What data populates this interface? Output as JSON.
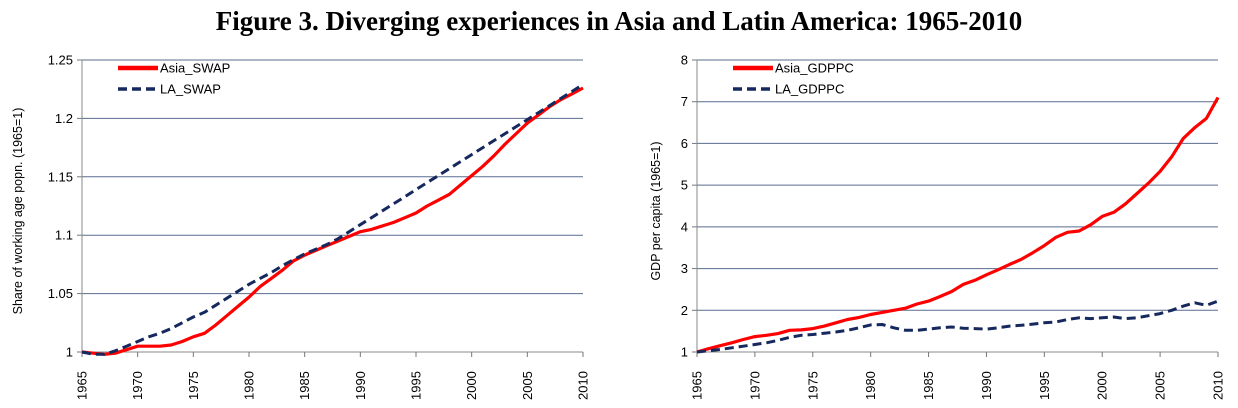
{
  "figure_title": "Figure 3. Diverging experiences in Asia and Latin America: 1965-2010",
  "chart_data": [
    {
      "type": "line",
      "title": "",
      "xlabel": "",
      "ylabel": "Share of working age popn. (1965=1)",
      "xlim": [
        1965,
        2010
      ],
      "ylim": [
        1,
        1.25
      ],
      "yticks": [
        "1",
        "1.05",
        "1.1",
        "1.15",
        "1.2",
        "1.25"
      ],
      "xticks": [
        "1965",
        "1970",
        "1975",
        "1980",
        "1985",
        "1990",
        "1995",
        "2000",
        "2005",
        "2010"
      ],
      "grid": "horizontal",
      "legend": "top-left",
      "series": [
        {
          "name": "Asia_SWAP",
          "color": "#ff0000",
          "style": "solid",
          "x": [
            1965,
            1966,
            1967,
            1968,
            1969,
            1970,
            1971,
            1972,
            1973,
            1974,
            1975,
            1976,
            1977,
            1978,
            1979,
            1980,
            1981,
            1982,
            1983,
            1984,
            1985,
            1986,
            1987,
            1988,
            1989,
            1990,
            1991,
            1992,
            1993,
            1994,
            1995,
            1996,
            1997,
            1998,
            1999,
            2000,
            2001,
            2002,
            2003,
            2004,
            2005,
            2006,
            2007,
            2008,
            2009,
            2010
          ],
          "values": [
            1.0,
            0.999,
            0.998,
            0.999,
            1.002,
            1.005,
            1.005,
            1.005,
            1.006,
            1.009,
            1.013,
            1.016,
            1.023,
            1.031,
            1.039,
            1.047,
            1.056,
            1.063,
            1.07,
            1.078,
            1.083,
            1.087,
            1.091,
            1.095,
            1.099,
            1.103,
            1.105,
            1.108,
            1.111,
            1.115,
            1.119,
            1.125,
            1.13,
            1.135,
            1.143,
            1.151,
            1.159,
            1.168,
            1.178,
            1.187,
            1.196,
            1.203,
            1.21,
            1.216,
            1.221,
            1.226
          ]
        },
        {
          "name": "LA_SWAP",
          "color": "#16295e",
          "style": "dashed",
          "x": [
            1965,
            1966,
            1967,
            1968,
            1969,
            1970,
            1971,
            1972,
            1973,
            1974,
            1975,
            1976,
            1977,
            1978,
            1979,
            1980,
            1981,
            1982,
            1983,
            1984,
            1985,
            1986,
            1987,
            1988,
            1989,
            1990,
            1991,
            1992,
            1993,
            1994,
            1995,
            1996,
            1997,
            1998,
            1999,
            2000,
            2001,
            2002,
            2003,
            2004,
            2005,
            2006,
            2007,
            2008,
            2009,
            2010
          ],
          "values": [
            1.0,
            0.998,
            0.998,
            1.001,
            1.005,
            1.009,
            1.013,
            1.016,
            1.02,
            1.025,
            1.03,
            1.034,
            1.04,
            1.046,
            1.052,
            1.058,
            1.063,
            1.068,
            1.074,
            1.079,
            1.084,
            1.088,
            1.092,
            1.097,
            1.103,
            1.109,
            1.115,
            1.121,
            1.127,
            1.133,
            1.139,
            1.145,
            1.151,
            1.157,
            1.163,
            1.169,
            1.175,
            1.181,
            1.187,
            1.193,
            1.199,
            1.205,
            1.211,
            1.217,
            1.223,
            1.229
          ]
        }
      ]
    },
    {
      "type": "line",
      "title": "",
      "xlabel": "",
      "ylabel": "GDP per capita (1965=1)",
      "xlim": [
        1965,
        2010
      ],
      "ylim": [
        1,
        8
      ],
      "yticks": [
        "1",
        "2",
        "3",
        "4",
        "5",
        "6",
        "7",
        "8"
      ],
      "xticks": [
        "1965",
        "1970",
        "1975",
        "1980",
        "1985",
        "1990",
        "1995",
        "2000",
        "2005",
        "2010"
      ],
      "grid": "horizontal",
      "legend": "top-left",
      "series": [
        {
          "name": "Asia_GDPPC",
          "color": "#ff0000",
          "style": "solid",
          "x": [
            1965,
            1966,
            1967,
            1968,
            1969,
            1970,
            1971,
            1972,
            1973,
            1974,
            1975,
            1976,
            1977,
            1978,
            1979,
            1980,
            1981,
            1982,
            1983,
            1984,
            1985,
            1986,
            1987,
            1988,
            1989,
            1990,
            1991,
            1992,
            1993,
            1994,
            1995,
            1996,
            1997,
            1998,
            1999,
            2000,
            2001,
            2002,
            2003,
            2004,
            2005,
            2006,
            2007,
            2008,
            2009,
            2010
          ],
          "values": [
            1.0,
            1.08,
            1.15,
            1.22,
            1.3,
            1.37,
            1.4,
            1.44,
            1.52,
            1.53,
            1.56,
            1.62,
            1.7,
            1.78,
            1.83,
            1.9,
            1.95,
            2.0,
            2.05,
            2.15,
            2.22,
            2.33,
            2.45,
            2.62,
            2.72,
            2.85,
            2.97,
            3.1,
            3.22,
            3.38,
            3.55,
            3.75,
            3.87,
            3.9,
            4.05,
            4.25,
            4.35,
            4.55,
            4.8,
            5.05,
            5.33,
            5.68,
            6.12,
            6.38,
            6.6,
            7.1
          ]
        },
        {
          "name": "LA_GDPPC",
          "color": "#16295e",
          "style": "dashed",
          "x": [
            1965,
            1966,
            1967,
            1968,
            1969,
            1970,
            1971,
            1972,
            1973,
            1974,
            1975,
            1976,
            1977,
            1978,
            1979,
            1980,
            1981,
            1982,
            1983,
            1984,
            1985,
            1986,
            1987,
            1988,
            1989,
            1990,
            1991,
            1992,
            1993,
            1994,
            1995,
            1996,
            1997,
            1998,
            1999,
            2000,
            2001,
            2002,
            2003,
            2004,
            2005,
            2006,
            2007,
            2008,
            2009,
            2010
          ],
          "values": [
            1.0,
            1.03,
            1.06,
            1.1,
            1.14,
            1.18,
            1.22,
            1.28,
            1.35,
            1.4,
            1.42,
            1.45,
            1.48,
            1.52,
            1.58,
            1.65,
            1.66,
            1.58,
            1.52,
            1.52,
            1.55,
            1.58,
            1.6,
            1.57,
            1.56,
            1.55,
            1.58,
            1.62,
            1.64,
            1.67,
            1.7,
            1.72,
            1.78,
            1.82,
            1.8,
            1.82,
            1.84,
            1.8,
            1.82,
            1.87,
            1.92,
            2.0,
            2.1,
            2.18,
            2.12,
            2.22
          ]
        }
      ]
    }
  ]
}
